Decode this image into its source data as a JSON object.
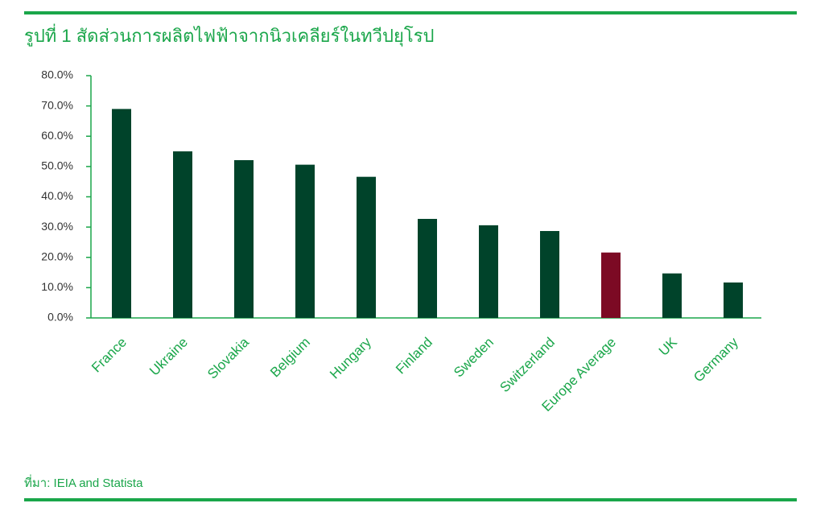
{
  "chart_data": {
    "type": "bar",
    "title": "รูปที่ 1 สัดส่วนการผลิตไฟฟ้าจากนิวเคลียร์ในทวีปยุโรป",
    "source": "ที่มา: IEIA and Statista",
    "categories": [
      "France",
      "Ukraine",
      "Slovakia",
      "Belgium",
      "Hungary",
      "Finland",
      "Sweden",
      "Switzerland",
      "Europe Average",
      "UK",
      "Germany"
    ],
    "values": [
      69,
      55,
      52.1,
      50.6,
      46.6,
      32.7,
      30.6,
      28.7,
      21.6,
      14.7,
      11.7
    ],
    "colors": [
      "#00432a",
      "#00432a",
      "#00432a",
      "#00432a",
      "#00432a",
      "#00432a",
      "#00432a",
      "#00432a",
      "#7c0a24",
      "#00432a",
      "#00432a"
    ],
    "ylim": [
      0,
      80
    ],
    "yticks": [
      {
        "value": 0,
        "label": "0.0%"
      },
      {
        "value": 10,
        "label": "10.0%"
      },
      {
        "value": 20,
        "label": "20.0%"
      },
      {
        "value": 30,
        "label": "30.0%"
      },
      {
        "value": 40,
        "label": "40.0%"
      },
      {
        "value": 50,
        "label": "50.0%"
      },
      {
        "value": 60,
        "label": "60.0%"
      },
      {
        "value": 70,
        "label": "70.0%"
      },
      {
        "value": 80,
        "label": "80.0%"
      }
    ],
    "grid": false
  }
}
